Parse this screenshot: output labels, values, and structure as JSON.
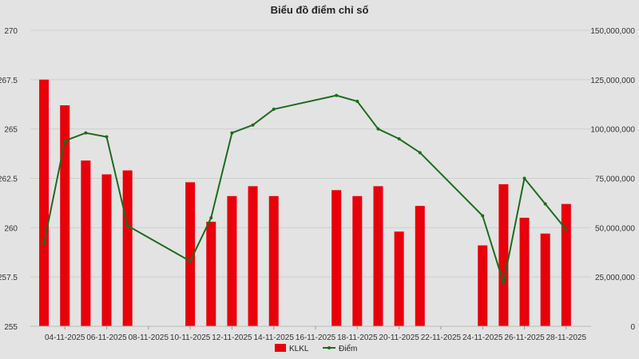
{
  "chart_data": {
    "type": "bar+line",
    "title": "Biểu đồ điểm chỉ số",
    "x": [
      "03-11-2025",
      "04-11-2025",
      "05-11-2025",
      "06-11-2025",
      "07-11-2025",
      "08-11-2025",
      "09-11-2025",
      "10-11-2025",
      "11-11-2025",
      "12-11-2025",
      "13-11-2025",
      "14-11-2025",
      "15-11-2025",
      "16-11-2025",
      "17-11-2025",
      "18-11-2025",
      "19-11-2025",
      "20-11-2025",
      "21-11-2025",
      "22-11-2025",
      "23-11-2025",
      "24-11-2025",
      "25-11-2025",
      "26-11-2025",
      "27-11-2025",
      "28-11-2025"
    ],
    "x_tick_labels": [
      "04-11-2025",
      "06-11-2025",
      "08-11-2025",
      "10-11-2025",
      "12-11-2025",
      "14-11-2025",
      "16-11-2025",
      "18-11-2025",
      "20-11-2025",
      "22-11-2025",
      "24-11-2025",
      "26-11-2025",
      "28-11-2025"
    ],
    "bar_series": {
      "name": "KLKL",
      "color": "#e8000b",
      "axis": "right",
      "points": [
        {
          "x": "03-11-2025",
          "y": 125000000
        },
        {
          "x": "04-11-2025",
          "y": 112000000
        },
        {
          "x": "05-11-2025",
          "y": 84000000
        },
        {
          "x": "06-11-2025",
          "y": 77000000
        },
        {
          "x": "07-11-2025",
          "y": 79000000
        },
        {
          "x": "10-11-2025",
          "y": 73000000
        },
        {
          "x": "11-11-2025",
          "y": 53000000
        },
        {
          "x": "12-11-2025",
          "y": 66000000
        },
        {
          "x": "13-11-2025",
          "y": 71000000
        },
        {
          "x": "14-11-2025",
          "y": 66000000
        },
        {
          "x": "17-11-2025",
          "y": 69000000
        },
        {
          "x": "18-11-2025",
          "y": 66000000
        },
        {
          "x": "19-11-2025",
          "y": 71000000
        },
        {
          "x": "20-11-2025",
          "y": 48000000
        },
        {
          "x": "21-11-2025",
          "y": 61000000
        },
        {
          "x": "24-11-2025",
          "y": 41000000
        },
        {
          "x": "25-11-2025",
          "y": 72000000
        },
        {
          "x": "26-11-2025",
          "y": 55000000
        },
        {
          "x": "27-11-2025",
          "y": 47000000
        },
        {
          "x": "28-11-2025",
          "y": 62000000
        }
      ]
    },
    "line_series": {
      "name": "Điểm",
      "color": "#1e6b1e",
      "axis": "left",
      "points": [
        {
          "x": "03-11-2025",
          "y": 259.2
        },
        {
          "x": "04-11-2025",
          "y": 264.4
        },
        {
          "x": "05-11-2025",
          "y": 264.8
        },
        {
          "x": "06-11-2025",
          "y": 264.6
        },
        {
          "x": "07-11-2025",
          "y": 260.1
        },
        {
          "x": "10-11-2025",
          "y": 258.3
        },
        {
          "x": "11-11-2025",
          "y": 260.5
        },
        {
          "x": "12-11-2025",
          "y": 264.8
        },
        {
          "x": "13-11-2025",
          "y": 265.2
        },
        {
          "x": "14-11-2025",
          "y": 266.0
        },
        {
          "x": "17-11-2025",
          "y": 266.7
        },
        {
          "x": "18-11-2025",
          "y": 266.4
        },
        {
          "x": "19-11-2025",
          "y": 265.0
        },
        {
          "x": "20-11-2025",
          "y": 264.5
        },
        {
          "x": "21-11-2025",
          "y": 263.8
        },
        {
          "x": "24-11-2025",
          "y": 260.6
        },
        {
          "x": "25-11-2025",
          "y": 257.2
        },
        {
          "x": "26-11-2025",
          "y": 262.5
        },
        {
          "x": "27-11-2025",
          "y": 261.2
        },
        {
          "x": "28-11-2025",
          "y": 259.9
        }
      ]
    },
    "y_left": {
      "min": 255,
      "max": 270,
      "ticks": [
        255,
        257.5,
        260,
        262.5,
        265,
        267.5,
        270
      ],
      "tick_labels": [
        "255",
        "257.5",
        "260",
        "262.5",
        "265",
        "267.5",
        "270"
      ]
    },
    "y_right": {
      "min": 0,
      "max": 150000000,
      "ticks": [
        0,
        25000000,
        50000000,
        75000000,
        100000000,
        125000000,
        150000000
      ],
      "tick_labels": [
        "0",
        "25,000,000",
        "50,000,000",
        "75,000,000",
        "100,000,000",
        "125,000,000",
        "150,000,000"
      ]
    },
    "grid": true,
    "legend_position": "bottom-center",
    "legend": [
      {
        "name": "KLKL",
        "kind": "bar",
        "color": "#e8000b"
      },
      {
        "name": "Điểm",
        "kind": "line",
        "color": "#1e6b1e"
      }
    ]
  }
}
